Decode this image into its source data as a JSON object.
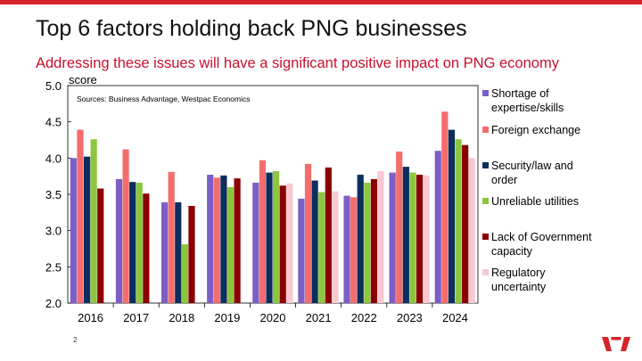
{
  "slide": {
    "title": "Top 6 factors holding back PNG businesses",
    "subtitle": "Addressing these issues will have a significant positive impact on PNG economy",
    "page_number": "2"
  },
  "colors": {
    "accent": "#d8232a",
    "subtitle": "#c8102e"
  },
  "chart_data": {
    "type": "bar",
    "ylabel": "score",
    "xlabel": "",
    "ylim": [
      2.0,
      5.0
    ],
    "yticks": [
      "2.0",
      "2.5",
      "3.0",
      "3.5",
      "4.0",
      "4.5",
      "5.0"
    ],
    "source_note": "Sources: Business Advantage, Westpac Economics",
    "legend_position": "right",
    "grid": false,
    "categories": [
      "2016",
      "2017",
      "2018",
      "2019",
      "2020",
      "2021",
      "2022",
      "2023",
      "2024"
    ],
    "series": [
      {
        "name": "Shortage of expertise/skills",
        "color": "#7b5fc6",
        "values": [
          4.0,
          3.71,
          3.39,
          3.77,
          3.66,
          3.44,
          3.48,
          3.8,
          4.1
        ]
      },
      {
        "name": "Foreign exchange",
        "color": "#f46d6d",
        "values": [
          4.39,
          4.12,
          3.81,
          3.73,
          3.97,
          3.92,
          3.46,
          4.09,
          4.64
        ]
      },
      {
        "name": "Security/law and order",
        "color": "#0c2d5e",
        "values": [
          4.02,
          3.67,
          3.39,
          3.76,
          3.8,
          3.69,
          3.77,
          3.88,
          4.39
        ]
      },
      {
        "name": "Unreliable utilities",
        "color": "#8cc63f",
        "values": [
          4.26,
          3.66,
          2.81,
          3.6,
          3.82,
          3.53,
          3.66,
          3.8,
          4.26
        ]
      },
      {
        "name": "Lack of Government capacity",
        "color": "#8b0000",
        "values": [
          3.58,
          3.51,
          3.34,
          3.72,
          3.62,
          3.87,
          3.71,
          3.77,
          4.18
        ]
      },
      {
        "name": "Regulatory uncertainty",
        "color": "#f9c8d2",
        "values": [
          null,
          null,
          null,
          null,
          3.65,
          3.54,
          3.82,
          3.76,
          4.0
        ]
      }
    ]
  }
}
